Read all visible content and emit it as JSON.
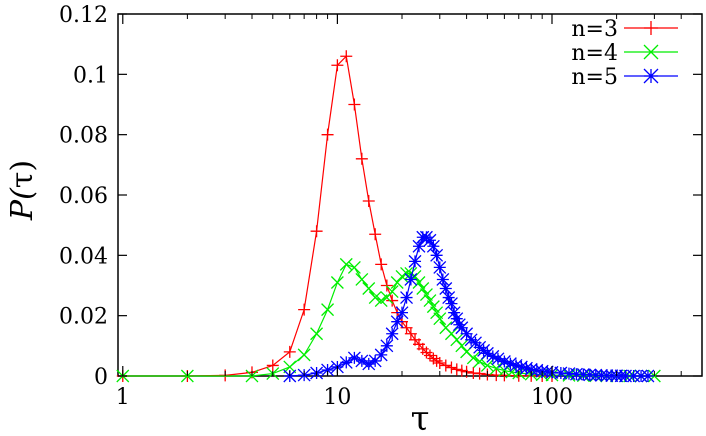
{
  "chart_data": {
    "type": "line",
    "xlabel": "τ",
    "ylabel_prefix": "P(",
    "ylabel_symbol": "τ",
    "ylabel_suffix": ")",
    "xscale": "log",
    "xlim": [
      0.95,
      500
    ],
    "ylim": [
      0,
      0.12
    ],
    "x_ticks": [
      1,
      10,
      100
    ],
    "x_tick_labels": [
      "1",
      "10",
      "100"
    ],
    "y_ticks": [
      0,
      0.02,
      0.04,
      0.06,
      0.08,
      0.1,
      0.12
    ],
    "y_tick_labels": [
      "0",
      "0.02",
      "0.04",
      "0.06",
      "0.08",
      "0.1",
      "0.12"
    ],
    "grid": false,
    "legend_position": "top-right",
    "series": [
      {
        "name": "n=3",
        "color": "#ff0000",
        "marker": "plus",
        "x": [
          1,
          2,
          3,
          4,
          5,
          6,
          7,
          8,
          9,
          10,
          11,
          12,
          13,
          14,
          15,
          16,
          17,
          18,
          19,
          20,
          21,
          22,
          23,
          24,
          25,
          26,
          27,
          28,
          29,
          30,
          32,
          34,
          36,
          38,
          40,
          43,
          46,
          50,
          55,
          60,
          70,
          80,
          90,
          100
        ],
        "y": [
          0,
          0,
          0.0002,
          0.0012,
          0.0035,
          0.008,
          0.022,
          0.048,
          0.08,
          0.103,
          0.106,
          0.09,
          0.072,
          0.058,
          0.047,
          0.037,
          0.03,
          0.025,
          0.021,
          0.018,
          0.016,
          0.014,
          0.012,
          0.0105,
          0.009,
          0.0078,
          0.0068,
          0.0058,
          0.005,
          0.0043,
          0.0035,
          0.0028,
          0.0022,
          0.0018,
          0.0014,
          0.001,
          0.0008,
          0.0005,
          0.0003,
          0.0002,
          0.0001,
          5e-05,
          0,
          0
        ]
      },
      {
        "name": "n=4",
        "color": "#00ee00",
        "marker": "cross",
        "x": [
          1,
          2,
          4,
          5,
          6,
          7,
          8,
          9,
          10,
          11,
          12,
          13,
          14,
          15,
          16,
          17,
          18,
          19,
          20,
          21,
          22,
          23,
          24,
          25,
          26,
          27,
          28,
          29,
          30,
          32,
          34,
          36,
          38,
          40,
          43,
          46,
          50,
          55,
          60,
          65,
          70,
          80,
          90,
          100,
          120,
          140,
          160,
          180,
          200,
          230,
          260,
          300
        ],
        "y": [
          0,
          0,
          0,
          0.0008,
          0.003,
          0.007,
          0.014,
          0.022,
          0.031,
          0.037,
          0.036,
          0.032,
          0.029,
          0.026,
          0.025,
          0.026,
          0.028,
          0.031,
          0.033,
          0.034,
          0.034,
          0.033,
          0.031,
          0.029,
          0.027,
          0.025,
          0.023,
          0.021,
          0.019,
          0.016,
          0.014,
          0.012,
          0.01,
          0.008,
          0.006,
          0.0048,
          0.0035,
          0.0025,
          0.0018,
          0.0013,
          0.001,
          0.0006,
          0.0004,
          0.0003,
          0.0002,
          0.0001,
          5e-05,
          0,
          0,
          0,
          0,
          0
        ]
      },
      {
        "name": "n=5",
        "color": "#0000ff",
        "marker": "star",
        "x": [
          6,
          7,
          8,
          9,
          10,
          11,
          12,
          13,
          14,
          15,
          16,
          17,
          18,
          19,
          20,
          21,
          22,
          23,
          24,
          25,
          26,
          27,
          28,
          29,
          30,
          31,
          32,
          33,
          34,
          35,
          36,
          37,
          38,
          40,
          42,
          44,
          46,
          48,
          50,
          53,
          56,
          60,
          64,
          68,
          72,
          76,
          80,
          85,
          90,
          95,
          100,
          110,
          120,
          130,
          140,
          150,
          160,
          170,
          180,
          190,
          200,
          210,
          220,
          240,
          260,
          280
        ],
        "y": [
          0,
          0.0003,
          0.001,
          0.002,
          0.003,
          0.0045,
          0.006,
          0.005,
          0.004,
          0.005,
          0.007,
          0.01,
          0.014,
          0.018,
          0.021,
          0.026,
          0.032,
          0.038,
          0.043,
          0.046,
          0.046,
          0.045,
          0.043,
          0.04,
          0.036,
          0.032,
          0.029,
          0.026,
          0.024,
          0.021,
          0.019,
          0.017,
          0.016,
          0.014,
          0.012,
          0.011,
          0.0095,
          0.0085,
          0.0075,
          0.0065,
          0.0057,
          0.0048,
          0.0041,
          0.0035,
          0.003,
          0.0026,
          0.0022,
          0.0019,
          0.0016,
          0.0014,
          0.0012,
          0.001,
          0.0008,
          0.0006,
          0.0005,
          0.0004,
          0.0003,
          0.0002,
          0.00015,
          0.0001,
          0.0001,
          5e-05,
          0,
          0,
          0,
          0
        ]
      }
    ]
  }
}
